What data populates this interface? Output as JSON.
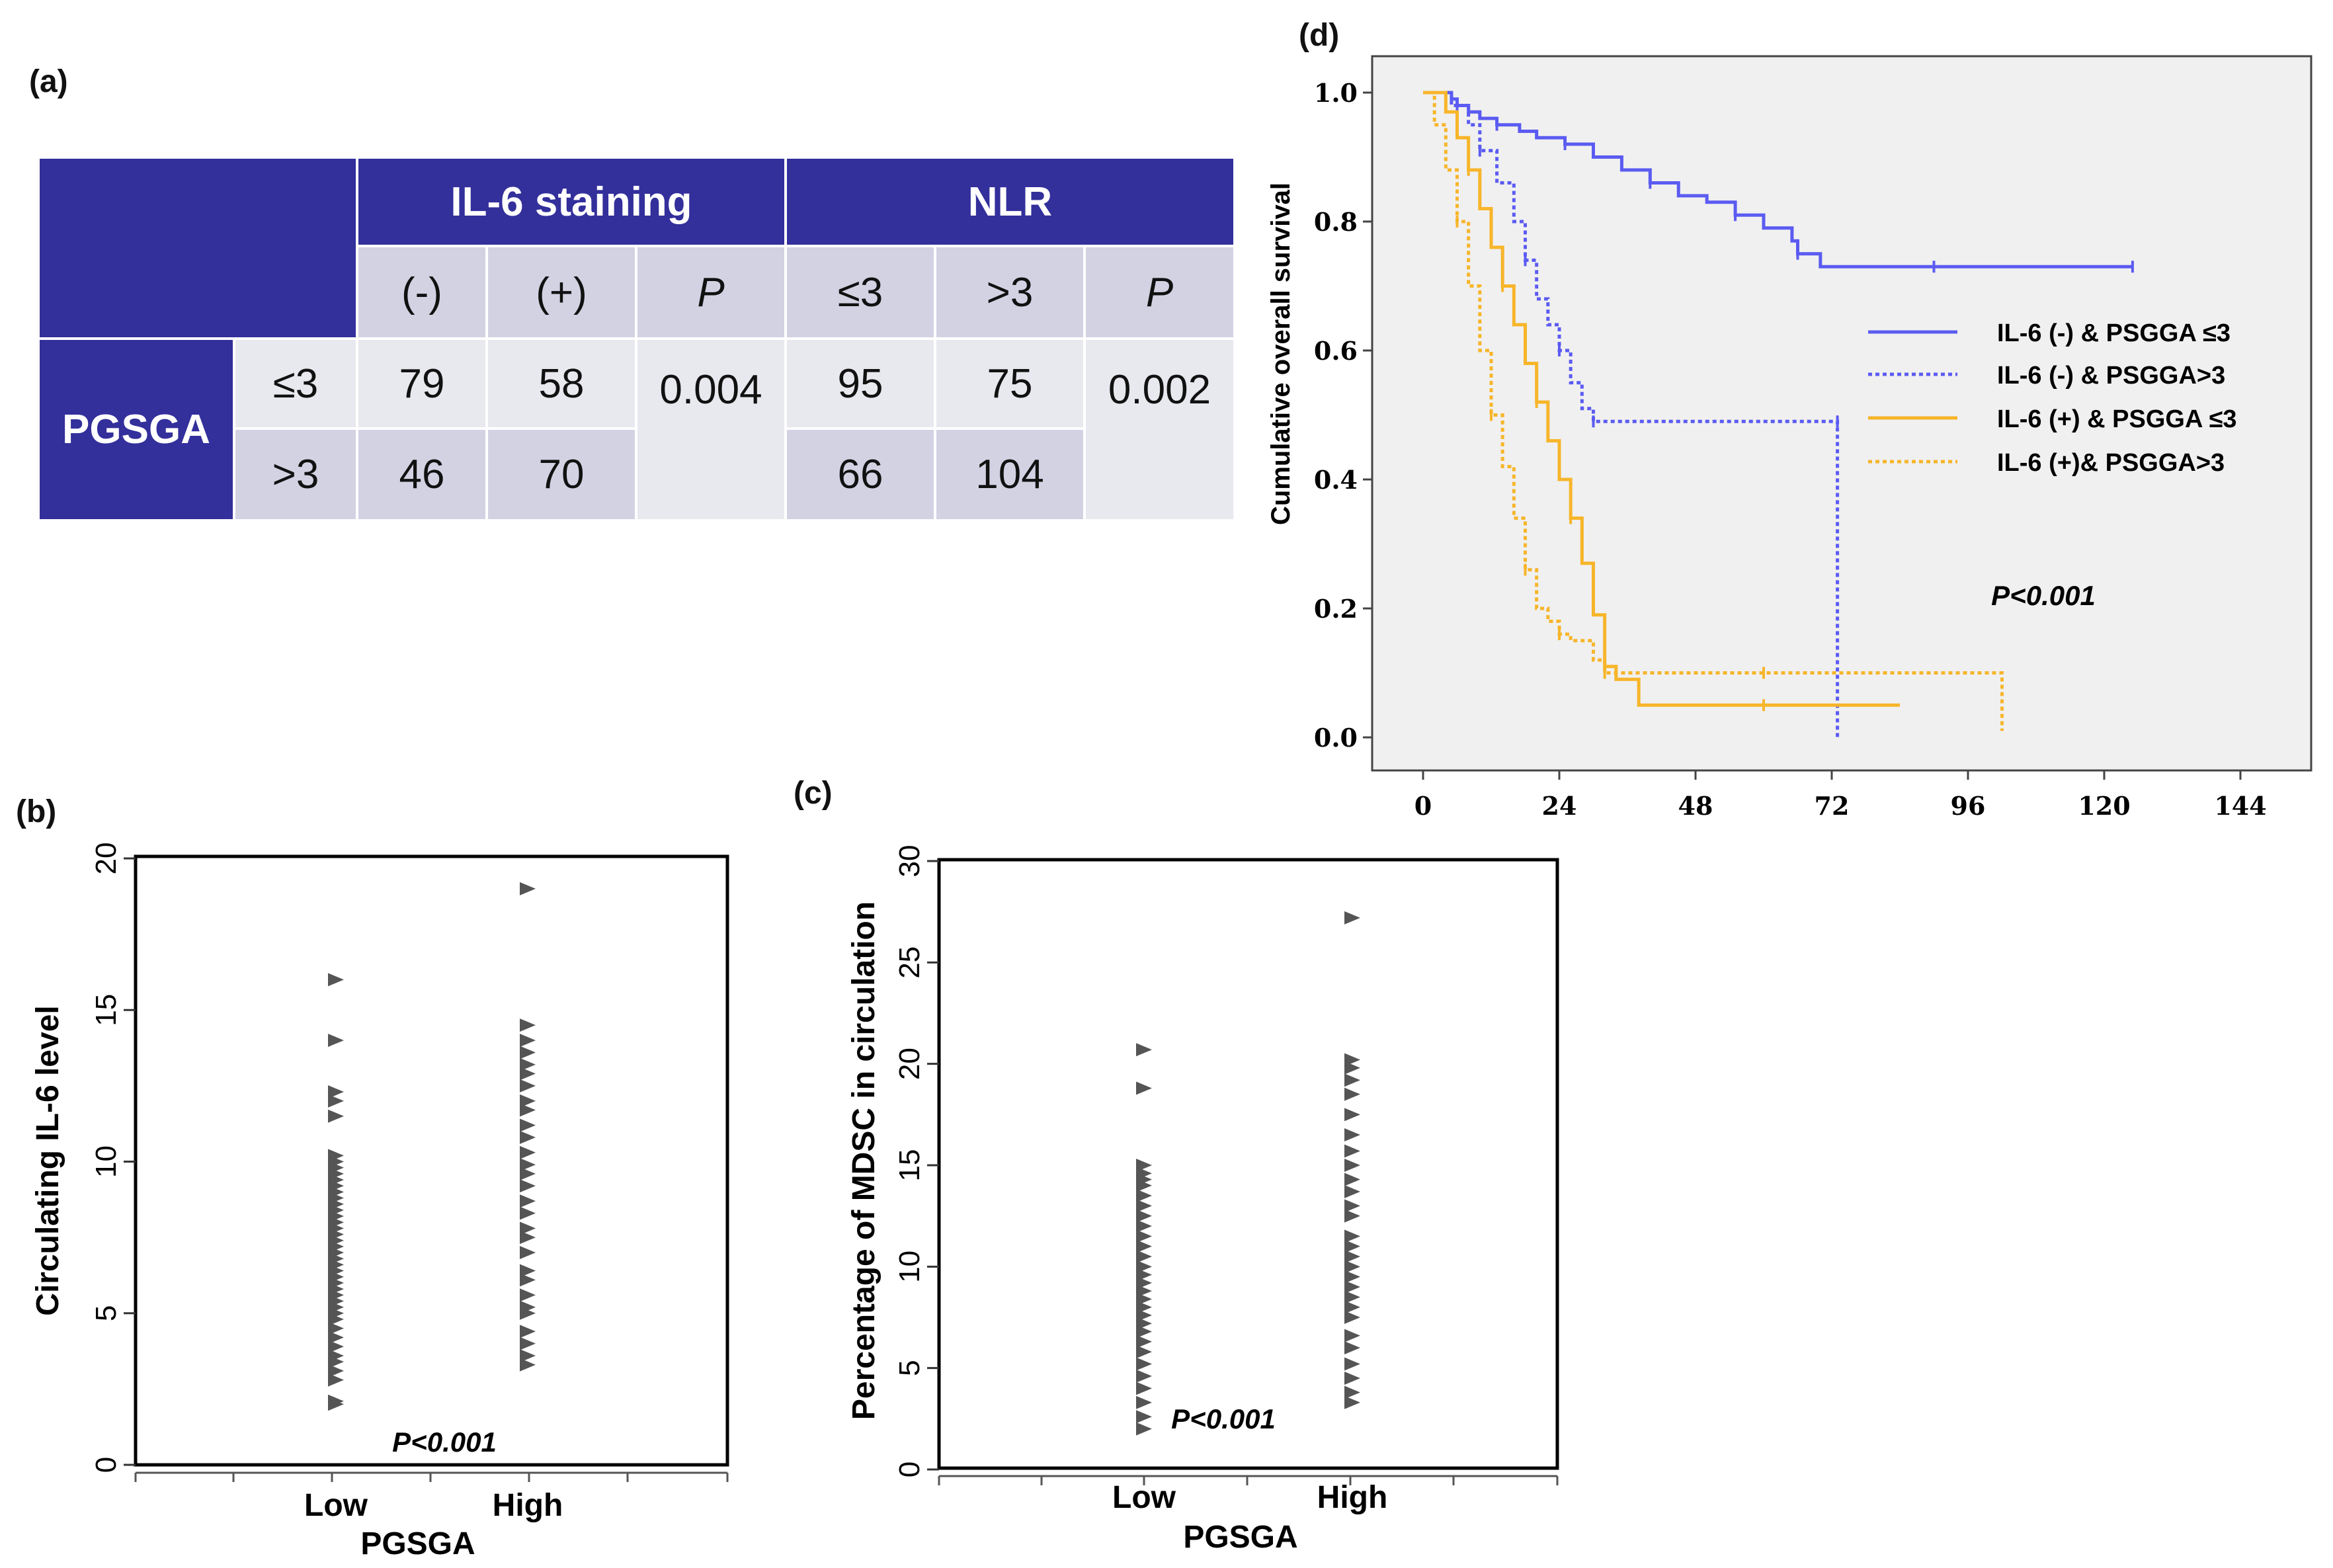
{
  "panel_labels": {
    "a": "(a)",
    "b": "(b)",
    "c": "(c)",
    "d": "(d)"
  },
  "colors": {
    "blue": "#5b5bf2",
    "orange": "#f7b52a",
    "header": "#332f9b",
    "marker": "#555555",
    "plot_bg": "#f0f0f0"
  },
  "chart_data": [
    {
      "id": "a",
      "type": "table",
      "group_headers": [
        "IL-6 staining",
        "NLR"
      ],
      "sub_headers": [
        "(-)",
        "(+)",
        "P",
        "≤3",
        ">3",
        "P"
      ],
      "row_group": "PGSGA",
      "rows": [
        {
          "label": "≤3",
          "cells": [
            "79",
            "58",
            "0.004",
            "95",
            "75",
            "0.002"
          ]
        },
        {
          "label": ">3",
          "cells": [
            "46",
            "70",
            "",
            "66",
            "104",
            ""
          ]
        }
      ]
    },
    {
      "id": "b",
      "type": "scatter",
      "xlabel": "PGSGA",
      "ylabel": "Circulating IL-6 level",
      "categories": [
        "Low",
        "High"
      ],
      "yticks": [
        "0",
        "5",
        "10",
        "15",
        "20"
      ],
      "ylim": [
        0,
        20
      ],
      "annotation": "P<0.001",
      "series": [
        {
          "name": "Low",
          "values": [
            2.0,
            2.1,
            2.8,
            3.1,
            3.4,
            3.6,
            3.9,
            4.2,
            4.5,
            4.8,
            5.0,
            5.2,
            5.4,
            5.6,
            5.8,
            6.0,
            6.2,
            6.4,
            6.6,
            6.8,
            7.0,
            7.2,
            7.4,
            7.6,
            7.8,
            8.0,
            8.2,
            8.4,
            8.6,
            8.8,
            9.0,
            9.2,
            9.4,
            9.6,
            9.8,
            10.0,
            10.2,
            11.5,
            12.0,
            12.3,
            14.0,
            16.0
          ]
        },
        {
          "name": "High",
          "values": [
            3.3,
            3.6,
            4.0,
            4.4,
            5.0,
            5.2,
            5.6,
            6.1,
            6.4,
            7.0,
            7.5,
            7.8,
            8.3,
            8.7,
            9.2,
            9.6,
            9.9,
            10.3,
            10.8,
            11.2,
            11.7,
            12.0,
            12.5,
            12.9,
            13.2,
            13.6,
            14.0,
            14.5,
            19.0
          ]
        }
      ]
    },
    {
      "id": "c",
      "type": "scatter",
      "xlabel": "PGSGA",
      "ylabel": "Percentage of MDSC in circulation",
      "categories": [
        "Low",
        "High"
      ],
      "yticks": [
        "0",
        "5",
        "10",
        "15",
        "20",
        "25",
        "30"
      ],
      "ylim": [
        0,
        30
      ],
      "annotation": "P<0.001",
      "series": [
        {
          "name": "Low",
          "values": [
            2.0,
            2.6,
            3.3,
            4.0,
            4.6,
            5.2,
            5.8,
            6.3,
            6.8,
            7.2,
            7.6,
            8.0,
            8.4,
            8.8,
            9.2,
            9.6,
            10.0,
            10.5,
            11.0,
            11.5,
            12.0,
            12.5,
            13.0,
            13.5,
            14.0,
            14.3,
            14.6,
            15.0,
            18.8,
            20.7
          ]
        },
        {
          "name": "High",
          "values": [
            3.3,
            3.8,
            4.5,
            5.2,
            6.0,
            6.6,
            7.5,
            8.0,
            8.5,
            9.0,
            9.5,
            10.0,
            10.5,
            11.0,
            11.5,
            12.5,
            13.0,
            13.7,
            14.3,
            15.0,
            15.7,
            16.5,
            17.5,
            18.5,
            19.2,
            19.8,
            20.2,
            27.2
          ]
        }
      ]
    },
    {
      "id": "d",
      "type": "line",
      "ylabel": "Cumulative overall survival",
      "xticks": [
        "0",
        "24",
        "48",
        "72",
        "96",
        "120",
        "144"
      ],
      "yticks": [
        "0.0",
        "0.2",
        "0.4",
        "0.6",
        "0.8",
        "1.0"
      ],
      "xlim": [
        -8,
        150
      ],
      "ylim": [
        -0.03,
        1.07
      ],
      "legend_position": "right",
      "annotation": "P<0.001",
      "series": [
        {
          "name": "IL-6 (-) & PSGGA ≤3",
          "style": "solid",
          "color": "blue",
          "x": [
            0,
            3,
            5,
            6,
            8,
            10,
            13,
            17,
            20,
            25,
            30,
            35,
            40,
            45,
            50,
            55,
            60,
            65,
            66,
            70,
            80,
            90,
            100,
            110,
            125
          ],
          "y": [
            1.0,
            1.0,
            0.99,
            0.98,
            0.97,
            0.96,
            0.95,
            0.94,
            0.93,
            0.92,
            0.9,
            0.88,
            0.86,
            0.84,
            0.83,
            0.81,
            0.79,
            0.77,
            0.75,
            0.73,
            0.73,
            0.73,
            0.73,
            0.73,
            0.73
          ]
        },
        {
          "name": "IL-6 (-) & PSGGA>3",
          "style": "dotted",
          "color": "blue",
          "x": [
            0,
            5,
            8,
            10,
            13,
            16,
            18,
            20,
            22,
            24,
            26,
            28,
            30,
            40,
            60,
            73,
            73
          ],
          "y": [
            1.0,
            0.98,
            0.95,
            0.91,
            0.86,
            0.8,
            0.74,
            0.68,
            0.64,
            0.6,
            0.55,
            0.51,
            0.49,
            0.49,
            0.49,
            0.49,
            0.0
          ]
        },
        {
          "name": "IL-6 (+) & PSGGA ≤3",
          "style": "solid",
          "color": "orange",
          "x": [
            0,
            4,
            6,
            8,
            10,
            12,
            14,
            16,
            18,
            20,
            22,
            24,
            26,
            28,
            30,
            32,
            34,
            38,
            60,
            84
          ],
          "y": [
            1.0,
            0.97,
            0.93,
            0.88,
            0.82,
            0.76,
            0.7,
            0.64,
            0.58,
            0.52,
            0.46,
            0.4,
            0.34,
            0.27,
            0.19,
            0.11,
            0.09,
            0.05,
            0.05,
            0.05
          ]
        },
        {
          "name": "IL-6 (+)& PSGGA>3",
          "style": "dotted",
          "color": "orange",
          "x": [
            0,
            2,
            4,
            6,
            8,
            10,
            12,
            14,
            16,
            18,
            20,
            22,
            24,
            26,
            30,
            32,
            34,
            40,
            60,
            100,
            102
          ],
          "y": [
            1.0,
            0.95,
            0.88,
            0.8,
            0.7,
            0.6,
            0.5,
            0.42,
            0.34,
            0.26,
            0.2,
            0.18,
            0.16,
            0.15,
            0.12,
            0.1,
            0.1,
            0.1,
            0.1,
            0.1,
            0.01
          ]
        }
      ]
    }
  ]
}
